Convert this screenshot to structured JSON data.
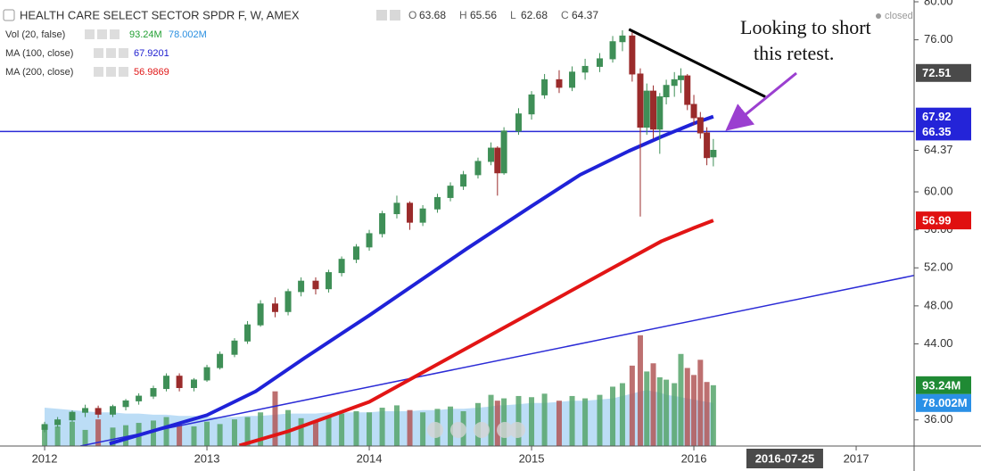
{
  "chart_data": {
    "type": "candlestick",
    "title": "HEALTH CARE SELECT SECTOR SPDR F, W, AMEX",
    "status": "closed",
    "ohlc_header": {
      "labels": [
        "O",
        "H",
        "L",
        "C"
      ],
      "values": [
        63.68,
        65.56,
        62.68,
        64.37
      ]
    },
    "indicators": [
      {
        "name": "Vol (20, false)",
        "values": [
          93.24,
          78.002
        ],
        "value_labels": [
          "93.24M",
          "78.002M"
        ],
        "colors": [
          "#22a033",
          "#2a8fe0"
        ]
      },
      {
        "name": "MA (100, close)",
        "values": [
          67.9201
        ],
        "colors": [
          "#2020d0"
        ]
      },
      {
        "name": "MA (200, close)",
        "values": [
          56.9869
        ],
        "colors": [
          "#e01818"
        ]
      }
    ],
    "annotation": [
      "Looking to short",
      "this retest."
    ],
    "x": [
      2012.0,
      2012.08,
      2012.17,
      2012.25,
      2012.33,
      2012.42,
      2012.5,
      2012.58,
      2012.67,
      2012.75,
      2012.83,
      2012.92,
      2013.0,
      2013.08,
      2013.17,
      2013.25,
      2013.33,
      2013.42,
      2013.5,
      2013.58,
      2013.67,
      2013.75,
      2013.83,
      2013.92,
      2014.0,
      2014.08,
      2014.17,
      2014.25,
      2014.33,
      2014.42,
      2014.5,
      2014.58,
      2014.67,
      2014.75,
      2014.79,
      2014.83,
      2014.92,
      2015.0,
      2015.08,
      2015.17,
      2015.25,
      2015.33,
      2015.42,
      2015.5,
      2015.56,
      2015.62,
      2015.67,
      2015.71,
      2015.75,
      2015.79,
      2015.83,
      2015.88,
      2015.92,
      2015.96,
      2016.0,
      2016.04,
      2016.08,
      2016.12
    ],
    "open": [
      35.0,
      35.5,
      36.0,
      36.8,
      37.2,
      36.6,
      37.4,
      38.0,
      38.5,
      39.3,
      40.6,
      39.4,
      40.2,
      41.5,
      42.9,
      44.3,
      46.0,
      48.2,
      47.4,
      49.5,
      50.6,
      49.8,
      51.5,
      52.9,
      54.2,
      55.6,
      57.7,
      58.8,
      56.8,
      58.2,
      59.4,
      60.6,
      61.8,
      63.2,
      64.6,
      62.0,
      66.4,
      68.2,
      70.2,
      71.8,
      71.0,
      72.6,
      73.2,
      74.0,
      75.8,
      76.4,
      72.4,
      66.8,
      70.6,
      66.6,
      70.0,
      71.2,
      71.8,
      72.2,
      69.2,
      67.8,
      66.2,
      63.68
    ],
    "high": [
      35.8,
      36.3,
      37.0,
      37.6,
      37.5,
      37.6,
      38.2,
      38.8,
      39.6,
      40.9,
      40.9,
      40.4,
      41.8,
      43.2,
      44.6,
      46.4,
      48.6,
      48.9,
      49.8,
      51.0,
      51.0,
      51.8,
      53.2,
      54.5,
      56.0,
      58.0,
      59.6,
      59.0,
      58.6,
      59.8,
      61.0,
      62.2,
      63.6,
      65.2,
      64.8,
      66.8,
      68.8,
      70.6,
      72.4,
      72.8,
      73.2,
      74.0,
      74.6,
      76.4,
      77.0,
      76.8,
      73.0,
      71.4,
      71.2,
      70.4,
      71.8,
      72.6,
      73.0,
      72.4,
      70.2,
      68.4,
      66.8,
      65.56
    ],
    "low": [
      34.7,
      35.2,
      35.8,
      36.3,
      36.2,
      36.3,
      37.0,
      37.6,
      38.2,
      39.0,
      39.0,
      39.0,
      40.0,
      41.3,
      42.6,
      44.0,
      45.8,
      46.8,
      47.0,
      49.0,
      49.2,
      49.4,
      51.1,
      52.5,
      53.8,
      55.2,
      57.2,
      56.0,
      56.4,
      57.8,
      59.0,
      60.2,
      61.4,
      62.8,
      59.6,
      61.8,
      66.0,
      67.6,
      69.8,
      70.4,
      70.6,
      71.8,
      72.6,
      73.6,
      74.8,
      71.6,
      57.4,
      66.0,
      65.6,
      64.0,
      69.2,
      70.0,
      70.4,
      68.6,
      67.0,
      65.6,
      62.8,
      62.68
    ],
    "close": [
      35.5,
      36.0,
      36.8,
      37.2,
      36.6,
      37.4,
      38.0,
      38.5,
      39.3,
      40.6,
      39.4,
      40.2,
      41.5,
      42.9,
      44.3,
      46.0,
      48.2,
      47.4,
      49.5,
      50.6,
      49.8,
      51.5,
      52.9,
      54.2,
      55.6,
      57.7,
      58.8,
      56.8,
      58.2,
      59.4,
      60.6,
      61.8,
      63.2,
      64.6,
      62.0,
      66.4,
      68.2,
      70.2,
      71.8,
      71.0,
      72.6,
      73.2,
      74.0,
      75.8,
      76.4,
      72.4,
      66.8,
      70.6,
      66.6,
      70.0,
      71.2,
      71.8,
      72.2,
      69.2,
      67.8,
      66.2,
      63.6,
      64.37
    ],
    "volume": [
      60,
      58,
      62,
      55,
      64,
      57,
      59,
      61,
      63,
      66,
      60,
      58,
      62,
      60,
      64,
      66,
      70,
      88,
      72,
      65,
      63,
      67,
      69,
      71,
      70,
      74,
      76,
      72,
      70,
      73,
      75,
      71,
      78,
      85,
      80,
      82,
      84,
      83,
      86,
      80,
      84,
      82,
      85,
      92,
      95,
      110,
      136,
      105,
      112,
      100,
      98,
      95,
      120,
      108,
      102,
      115,
      96,
      93.24
    ],
    "volume_ma": [
      74,
      73,
      72,
      71,
      70,
      70,
      69,
      69,
      68,
      68,
      67,
      67,
      66,
      66,
      66,
      67,
      67,
      68,
      69,
      69,
      69,
      70,
      70,
      70,
      70,
      71,
      71,
      71,
      72,
      72,
      73,
      73,
      74,
      75,
      76,
      76,
      77,
      78,
      78,
      79,
      80,
      80,
      81,
      82,
      84,
      86,
      88,
      89,
      88,
      87,
      85,
      84,
      83,
      82,
      81,
      80,
      79,
      78.002
    ],
    "up_color": "#3f8f57",
    "down_color": "#9a2b2b",
    "volume_up_color": "#56a56b",
    "volume_down_color": "#b25757",
    "volume_ma_color": "#8fc7f0",
    "ma100": {
      "color": "#1f22d8",
      "x": [
        2012.4,
        2012.7,
        2013.0,
        2013.3,
        2013.6,
        2014.0,
        2014.3,
        2014.6,
        2015.0,
        2015.3,
        2015.6,
        2015.8,
        2016.0,
        2016.12
      ],
      "values": [
        33.5,
        35.0,
        36.5,
        39.0,
        42.5,
        47.0,
        50.5,
        54.0,
        58.5,
        61.8,
        64.3,
        65.8,
        67.2,
        67.92
      ]
    },
    "ma200": {
      "color": "#e21515",
      "x": [
        2013.2,
        2013.5,
        2014.0,
        2014.5,
        2015.0,
        2015.5,
        2015.8,
        2016.0,
        2016.12
      ],
      "values": [
        33.3,
        34.8,
        37.9,
        42.6,
        47.3,
        52.0,
        54.8,
        56.2,
        56.99
      ]
    },
    "trend_lines": [
      {
        "color": "#000000",
        "width": 3,
        "x": [
          2015.6,
          2016.44
        ],
        "values": [
          77.1,
          70.0
        ]
      },
      {
        "color": "#2b2bd6",
        "width": 1.5,
        "x": [
          2012.22,
          2017.357
        ],
        "values": [
          33.25,
          51.2
        ]
      }
    ],
    "hlines": [
      {
        "value": 66.35,
        "color": "#2b2bd6"
      }
    ],
    "price_badges": [
      {
        "value": 72.51,
        "color": "#4a4a4a"
      },
      {
        "value": 67.92,
        "color": "#2424d8"
      },
      {
        "value": 66.35,
        "color": "#2424d8"
      },
      {
        "value": 56.99,
        "color": "#e01010"
      }
    ],
    "volume_badges": [
      {
        "value": 93.24,
        "label": "93.24M",
        "color": "#1f8a34"
      },
      {
        "value": 78.002,
        "label": "78.002M",
        "color": "#2a90e6"
      }
    ],
    "last_price": 64.37,
    "x_marker": {
      "value": 2016.56,
      "label": "2016-07-25"
    },
    "xlim": [
      2011.725,
      2017.357
    ],
    "ylim": [
      33.25,
      80
    ],
    "volume_ylim": [
      41.2,
      421.4
    ],
    "xticks": [
      2012,
      2013,
      2014,
      2015,
      2016,
      2017
    ],
    "yticks": [
      {
        "value": 80,
        "label": "80.00"
      },
      {
        "value": 76,
        "label": "76.00"
      },
      {
        "value": 60,
        "label": "60.00"
      },
      {
        "value": 56,
        "label": "56.00"
      },
      {
        "value": 52,
        "label": "52.00"
      },
      {
        "value": 48,
        "label": "48.00"
      },
      {
        "value": 44,
        "label": "44.00"
      },
      {
        "value": 36,
        "label": "36.00"
      }
    ]
  }
}
